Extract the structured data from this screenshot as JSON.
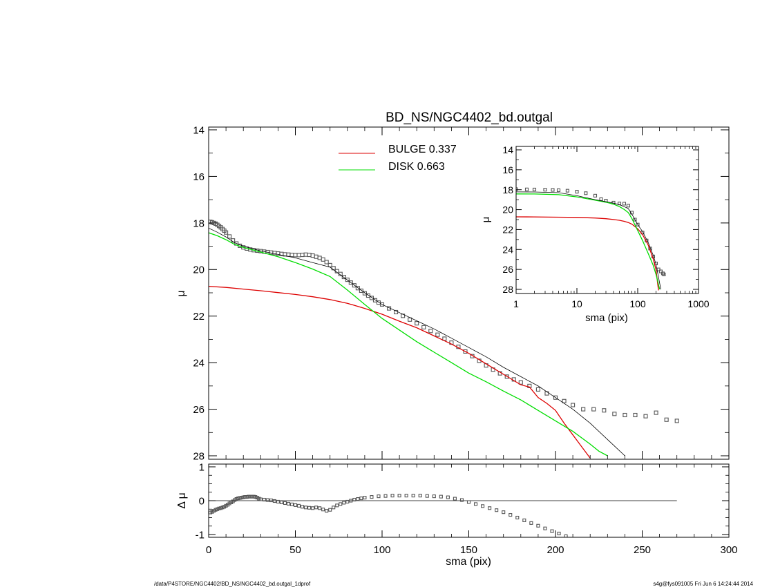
{
  "footer": {
    "path": "/data/P4STORE/NGC4402/BD_NS/NGC4402_bd.outgal_1dprof",
    "stamp": "s4g@fys091005  Fri Jun  6 14:24:44 2014"
  },
  "colors": {
    "bulge": "#dd0000",
    "disk": "#00dd00",
    "model": "#000000",
    "data_points": "#555555"
  },
  "chart_data": [
    {
      "type": "line",
      "id": "main",
      "title": "BD_NS/NGC4402_bd.outgal",
      "xlabel": "",
      "ylabel": "μ",
      "xlim": [
        0,
        300
      ],
      "ylim": [
        28,
        14
      ],
      "xticks": [
        0,
        50,
        100,
        150,
        200,
        250,
        300
      ],
      "yticks": [
        14,
        16,
        18,
        20,
        22,
        24,
        26,
        28
      ],
      "yticklabels": [
        "14",
        "16",
        "18",
        "20",
        "22",
        "24",
        "26",
        "28"
      ],
      "legend": [
        {
          "label": "BULGE  0.337",
          "color": "#dd0000"
        },
        {
          "label": "DISK  0.663",
          "color": "#00dd00"
        }
      ],
      "series": [
        {
          "kind": "points",
          "x": [
            1,
            2,
            3,
            4,
            5,
            6,
            7,
            8,
            9,
            10,
            12,
            14,
            16,
            18,
            20,
            22,
            24,
            26,
            28,
            30,
            32,
            34,
            36,
            38,
            40,
            42,
            44,
            46,
            48,
            50,
            52,
            54,
            56,
            58,
            60,
            62,
            64,
            66,
            68,
            70,
            72,
            74,
            76,
            78,
            80,
            82,
            84,
            86,
            88,
            90,
            92,
            94,
            96,
            98,
            100,
            104,
            108,
            112,
            116,
            120,
            124,
            128,
            132,
            136,
            140,
            144,
            148,
            152,
            156,
            160,
            164,
            168,
            172,
            176,
            180,
            185,
            190,
            195,
            200,
            205,
            210,
            216,
            222,
            228,
            234,
            240,
            246,
            252,
            258,
            264,
            270
          ],
          "y": [
            17.95,
            17.97,
            18.0,
            18.03,
            18.08,
            18.13,
            18.19,
            18.26,
            18.33,
            18.41,
            18.58,
            18.75,
            18.88,
            18.98,
            19.05,
            19.1,
            19.14,
            19.17,
            19.19,
            19.21,
            19.23,
            19.25,
            19.27,
            19.29,
            19.31,
            19.33,
            19.35,
            19.36,
            19.37,
            19.38,
            19.38,
            19.37,
            19.36,
            19.37,
            19.4,
            19.45,
            19.5,
            19.57,
            19.68,
            19.81,
            19.94,
            20.07,
            20.19,
            20.32,
            20.44,
            20.56,
            20.68,
            20.8,
            20.91,
            21.02,
            21.12,
            21.22,
            21.32,
            21.42,
            21.5,
            21.67,
            21.83,
            21.99,
            22.15,
            22.31,
            22.48,
            22.64,
            22.8,
            22.97,
            23.14,
            23.32,
            23.52,
            23.72,
            23.92,
            24.12,
            24.3,
            24.46,
            24.6,
            24.72,
            24.85,
            25.0,
            25.15,
            25.32,
            25.5,
            25.65,
            25.82,
            26.0,
            26.0,
            26.05,
            26.2,
            26.25,
            26.25,
            26.3,
            26.15,
            26.45,
            26.5
          ]
        },
        {
          "name": "BULGE  0.337",
          "kind": "line",
          "color": "#dd0000",
          "x": [
            0,
            10,
            20,
            30,
            40,
            50,
            60,
            70,
            80,
            90,
            100,
            110,
            120,
            130,
            140,
            150,
            160,
            170,
            180,
            185,
            190,
            195,
            200,
            205,
            210,
            215,
            220
          ],
          "y": [
            20.72,
            20.77,
            20.84,
            20.91,
            20.99,
            21.07,
            21.17,
            21.29,
            21.45,
            21.67,
            21.92,
            22.22,
            22.5,
            22.85,
            23.2,
            23.6,
            24.05,
            24.5,
            24.95,
            25.05,
            25.5,
            25.75,
            26.05,
            26.6,
            27.1,
            27.6,
            28.1
          ]
        },
        {
          "name": "DISK  0.663",
          "kind": "line",
          "color": "#00dd00",
          "x": [
            0,
            5,
            10,
            15,
            20,
            30,
            40,
            50,
            60,
            70,
            80,
            90,
            100,
            110,
            120,
            130,
            140,
            150,
            160,
            170,
            180,
            190,
            200,
            210,
            220,
            225,
            230
          ],
          "y": [
            18.42,
            18.55,
            18.72,
            18.92,
            19.05,
            19.25,
            19.45,
            19.7,
            19.98,
            20.3,
            20.88,
            21.5,
            22.1,
            22.6,
            23.1,
            23.55,
            24.0,
            24.45,
            24.82,
            25.22,
            25.6,
            26.05,
            26.5,
            26.95,
            27.5,
            27.8,
            28.0
          ]
        },
        {
          "name": "",
          "kind": "line",
          "color": "#000000",
          "x": [
            0,
            5,
            10,
            15,
            20,
            30,
            40,
            50,
            60,
            70,
            80,
            90,
            100,
            110,
            120,
            130,
            140,
            150,
            160,
            170,
            180,
            190,
            200,
            210,
            220,
            230,
            240
          ],
          "y": [
            18.22,
            18.4,
            18.6,
            18.85,
            19.0,
            19.2,
            19.35,
            19.5,
            19.7,
            19.9,
            20.45,
            21.0,
            21.5,
            21.85,
            22.2,
            22.55,
            22.95,
            23.35,
            23.75,
            24.2,
            24.6,
            25.0,
            25.5,
            26.0,
            26.6,
            27.3,
            28.0
          ]
        }
      ]
    },
    {
      "type": "line",
      "id": "inset",
      "title": "",
      "xlabel": "sma (pix)",
      "ylabel": "μ",
      "xscale": "log",
      "xlim": [
        1,
        1000
      ],
      "ylim": [
        28,
        14
      ],
      "xticks": [
        1,
        10,
        100,
        1000
      ],
      "xticklabels": [
        "1",
        "10",
        "100",
        "1000"
      ],
      "yticks": [
        14,
        16,
        18,
        20,
        22,
        24,
        26,
        28
      ],
      "yticklabels": [
        "14",
        "16",
        "18",
        "20",
        "22",
        "24",
        "26",
        "28"
      ],
      "series": [
        {
          "kind": "points",
          "x": [
            1,
            1.5,
            2,
            3,
            4,
            5,
            7,
            10,
            14,
            20,
            25,
            30,
            40,
            50,
            60,
            70,
            80,
            90,
            100,
            120,
            140,
            160,
            180,
            200,
            220,
            240,
            260,
            270
          ],
          "y": [
            17.95,
            17.97,
            17.98,
            18.0,
            18.02,
            18.05,
            18.1,
            18.2,
            18.35,
            18.6,
            18.95,
            19.1,
            19.3,
            19.38,
            19.4,
            19.6,
            20.3,
            21.0,
            21.5,
            22.3,
            23.1,
            23.9,
            24.7,
            25.4,
            26.0,
            26.2,
            26.4,
            26.5
          ]
        },
        {
          "name": "",
          "kind": "line",
          "color": "#dd0000",
          "x": [
            1,
            2,
            5,
            10,
            20,
            30,
            40,
            50,
            60,
            70,
            80,
            100,
            120,
            150,
            180,
            200,
            220
          ],
          "y": [
            20.72,
            20.73,
            20.76,
            20.78,
            20.84,
            20.91,
            20.99,
            21.07,
            21.17,
            21.29,
            21.45,
            21.92,
            22.5,
            23.6,
            24.95,
            26.05,
            28.1
          ]
        },
        {
          "name": "",
          "kind": "line",
          "color": "#00dd00",
          "x": [
            1,
            2,
            5,
            10,
            20,
            30,
            40,
            50,
            60,
            70,
            80,
            100,
            120,
            150,
            180,
            200,
            230
          ],
          "y": [
            18.42,
            18.43,
            18.5,
            18.72,
            19.05,
            19.25,
            19.45,
            19.7,
            19.98,
            20.3,
            20.88,
            22.1,
            23.1,
            24.45,
            25.6,
            26.5,
            28.0
          ]
        },
        {
          "name": "",
          "kind": "line",
          "color": "#000000",
          "x": [
            1,
            2,
            5,
            10,
            20,
            30,
            40,
            50,
            60,
            70,
            80,
            100,
            120,
            150,
            180,
            200,
            240
          ],
          "y": [
            18.22,
            18.23,
            18.3,
            18.6,
            19.0,
            19.2,
            19.35,
            19.5,
            19.7,
            19.9,
            20.45,
            21.5,
            22.2,
            23.35,
            24.6,
            25.5,
            28.0
          ]
        }
      ]
    },
    {
      "type": "scatter",
      "id": "residual",
      "title": "",
      "xlabel": "sma (pix)",
      "ylabel": "Δ μ",
      "xlim": [
        0,
        300
      ],
      "ylim": [
        -1.1,
        1.0
      ],
      "xticks": [
        0,
        50,
        100,
        150,
        200,
        250,
        300
      ],
      "yticks": [
        -1,
        0,
        1
      ],
      "yticklabels": [
        "-1",
        "0",
        "1"
      ],
      "zero_line_x": [
        0,
        270
      ],
      "series": [
        {
          "kind": "points",
          "x": [
            1,
            2,
            3,
            4,
            5,
            6,
            7,
            8,
            9,
            10,
            11,
            12,
            13,
            14,
            15,
            16,
            17,
            18,
            19,
            20,
            21,
            22,
            23,
            24,
            25,
            26,
            27,
            28,
            29,
            30,
            32,
            34,
            36,
            38,
            40,
            42,
            44,
            46,
            48,
            50,
            52,
            54,
            56,
            58,
            60,
            62,
            64,
            66,
            68,
            70,
            72,
            74,
            76,
            78,
            80,
            82,
            84,
            86,
            88,
            90,
            94,
            98,
            102,
            106,
            110,
            114,
            118,
            122,
            126,
            130,
            134,
            138,
            142,
            146,
            150,
            154,
            158,
            162,
            166,
            170,
            174,
            178,
            182,
            186,
            190,
            194,
            198,
            202,
            206
          ],
          "y": [
            -0.35,
            -0.33,
            -0.3,
            -0.27,
            -0.25,
            -0.23,
            -0.22,
            -0.2,
            -0.18,
            -0.15,
            -0.12,
            -0.08,
            -0.05,
            -0.02,
            0.02,
            0.05,
            0.07,
            0.08,
            0.09,
            0.1,
            0.11,
            0.11,
            0.12,
            0.12,
            0.12,
            0.12,
            0.11,
            0.09,
            0.06,
            0.04,
            0.03,
            0.02,
            0.01,
            -0.01,
            -0.03,
            -0.05,
            -0.07,
            -0.09,
            -0.11,
            -0.13,
            -0.15,
            -0.18,
            -0.2,
            -0.21,
            -0.22,
            -0.2,
            -0.22,
            -0.26,
            -0.3,
            -0.27,
            -0.2,
            -0.14,
            -0.1,
            -0.06,
            -0.03,
            0.0,
            0.03,
            0.05,
            0.07,
            0.09,
            0.11,
            0.13,
            0.14,
            0.15,
            0.15,
            0.15,
            0.15,
            0.15,
            0.14,
            0.13,
            0.12,
            0.1,
            0.06,
            0.02,
            -0.04,
            -0.1,
            -0.16,
            -0.22,
            -0.28,
            -0.34,
            -0.42,
            -0.5,
            -0.58,
            -0.66,
            -0.74,
            -0.82,
            -0.9,
            -0.97,
            -1.05
          ]
        }
      ]
    }
  ]
}
